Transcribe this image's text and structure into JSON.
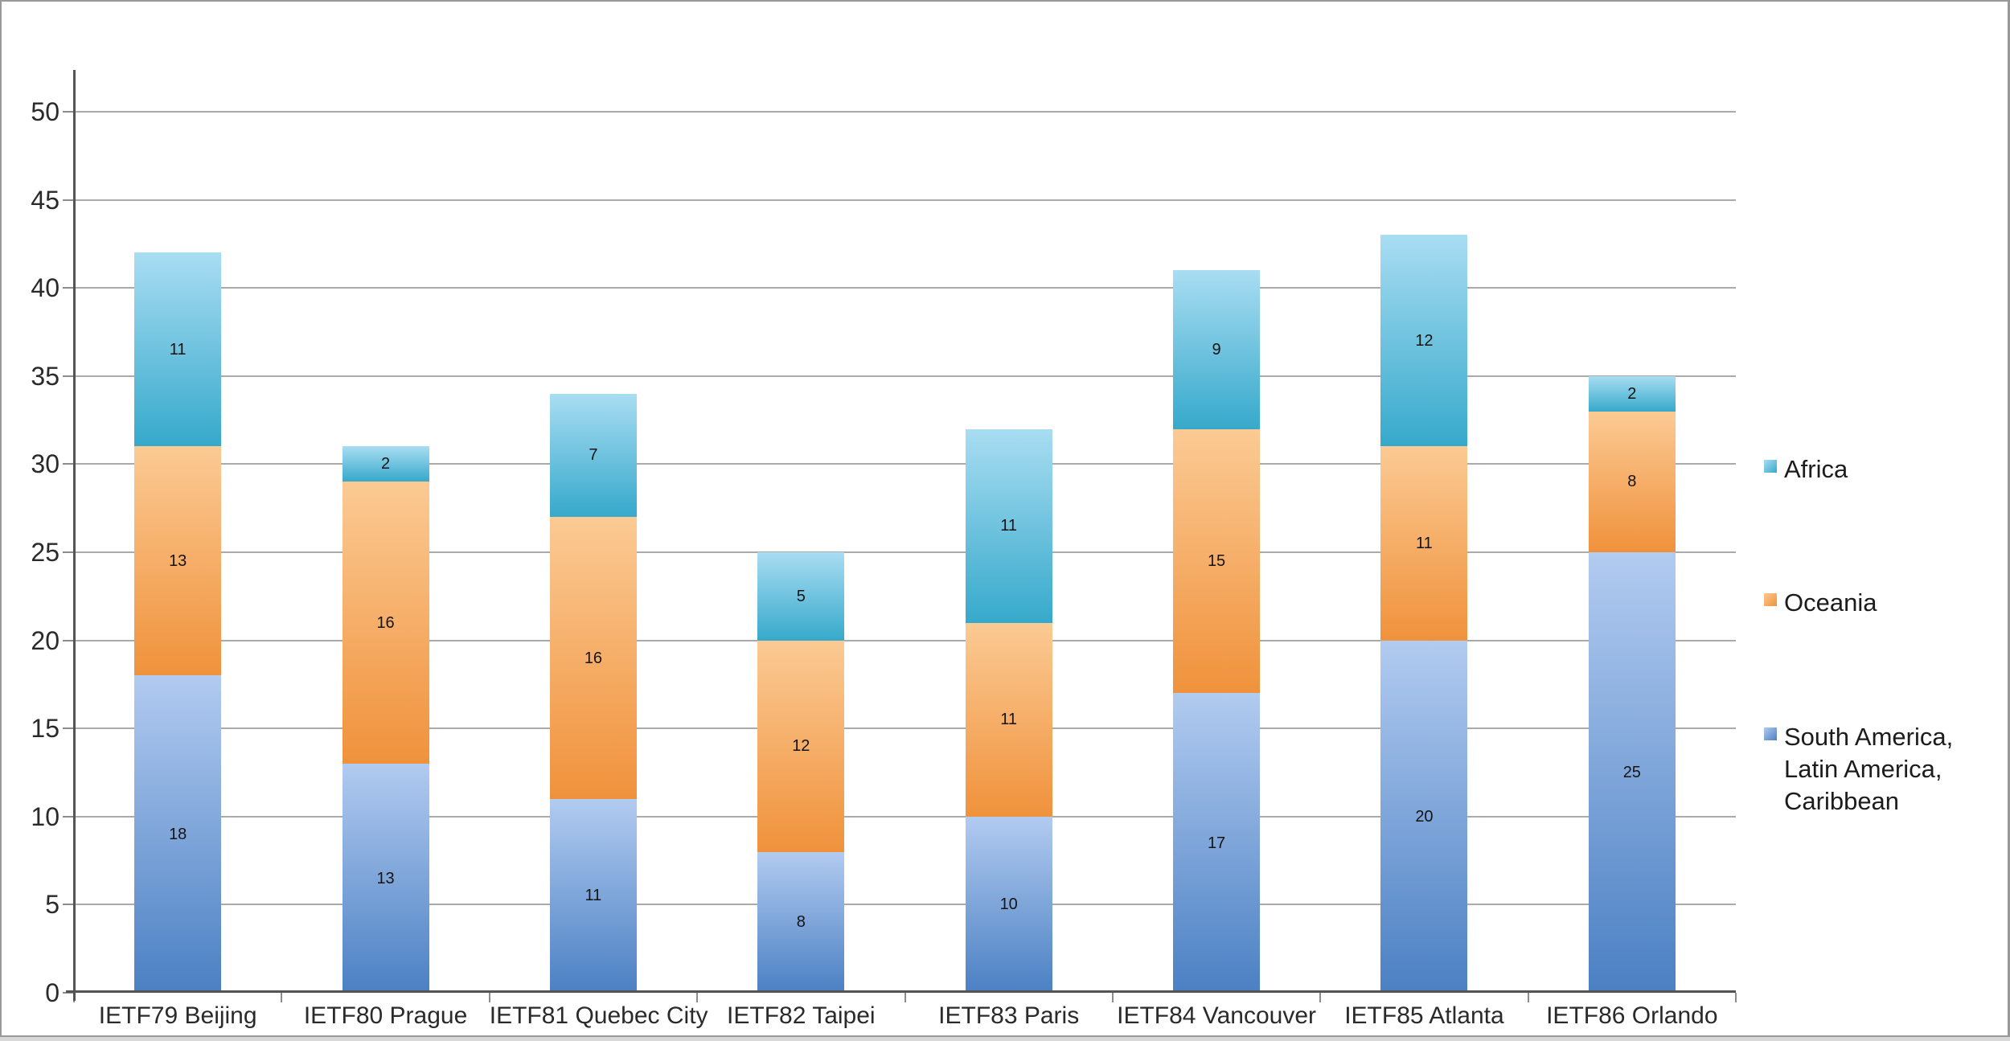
{
  "chart_data": {
    "type": "bar",
    "stacked": true,
    "title": "",
    "xlabel": "",
    "ylabel": "",
    "categories": [
      "IETF79 Beijing",
      "IETF80 Prague",
      "IETF81 Quebec City",
      "IETF82 Taipei",
      "IETF83 Paris",
      "IETF84 Vancouver",
      "IETF85 Atlanta",
      "IETF86 Orlando"
    ],
    "series": [
      {
        "name": "South America, Latin America, Caribbean",
        "values": [
          18,
          13,
          11,
          8,
          10,
          17,
          20,
          25
        ],
        "color_top": "#b2cbf0",
        "color_bottom": "#4b80c3"
      },
      {
        "name": "Oceania",
        "values": [
          13,
          16,
          16,
          12,
          11,
          15,
          11,
          8
        ],
        "color_top": "#fbca94",
        "color_bottom": "#f0923c"
      },
      {
        "name": "Africa",
        "values": [
          11,
          2,
          7,
          5,
          11,
          9,
          12,
          2
        ],
        "color_top": "#a9ddf2",
        "color_bottom": "#36a9cb"
      }
    ],
    "totals": [
      42,
      31,
      34,
      25,
      32,
      41,
      43,
      35
    ],
    "ylim": [
      0,
      50
    ],
    "ytick_step": 5,
    "ytick_labels": [
      "0",
      "5",
      "10",
      "15",
      "20",
      "25",
      "30",
      "35",
      "40",
      "45",
      "50"
    ],
    "grid": true,
    "data_labels": true,
    "legend_position": "right"
  },
  "legend": {
    "items": [
      {
        "label": "Africa",
        "series_index": 2
      },
      {
        "label": "Oceania",
        "series_index": 1
      },
      {
        "label": "South America, Latin America, Caribbean",
        "series_index": 0
      }
    ]
  },
  "colors": {
    "gridline": "#aaaaaa",
    "axis": "#545454",
    "axis_text": "#2a2a2a",
    "value_text": "#141414",
    "background": "#ffffff",
    "frame_border": "#999999"
  }
}
